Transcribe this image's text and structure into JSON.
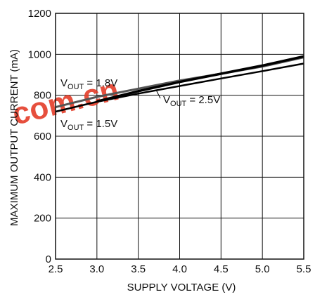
{
  "chart_data": {
    "type": "line",
    "title": "",
    "xlabel": "SUPPLY VOLTAGE (V)",
    "ylabel": "MAXIMUM OUTPUT CURRENT (mA)",
    "xlim": [
      2.5,
      5.5
    ],
    "ylim": [
      0,
      1200
    ],
    "xticks": [
      2.5,
      3.0,
      3.5,
      4.0,
      4.5,
      5.0,
      5.5
    ],
    "xtick_labels": [
      "2.5",
      "3.0",
      "3.5",
      "4.0",
      "4.5",
      "5.0",
      "5.5"
    ],
    "yticks": [
      0,
      200,
      400,
      600,
      800,
      1000,
      1200
    ],
    "ytick_labels": [
      "0",
      "200",
      "400",
      "600",
      "800",
      "1000",
      "1200"
    ],
    "grid": true,
    "legend": "none",
    "series": [
      {
        "name": "VOUT = 1.8V",
        "label_main": "V",
        "label_sub": "OUT",
        "label_rest": " = 1.8V",
        "x": [
          2.5,
          3.0,
          3.5,
          4.0,
          4.5,
          5.0,
          5.5
        ],
        "y": [
          742,
          792,
          832,
          872,
          905,
          940,
          985
        ]
      },
      {
        "name": "VOUT = 2.5V",
        "label_main": "V",
        "label_sub": "OUT",
        "label_rest": " = 2.5V",
        "x": [
          3.0,
          3.5,
          4.0,
          4.5,
          5.0,
          5.5
        ],
        "y": [
          770,
          820,
          865,
          905,
          945,
          990
        ]
      },
      {
        "name": "VOUT = 1.5V",
        "label_main": "V",
        "label_sub": "OUT",
        "label_rest": " = 1.5V",
        "x": [
          2.5,
          3.0,
          3.5,
          4.0,
          4.5,
          5.0,
          5.5
        ],
        "y": [
          720,
          768,
          808,
          845,
          882,
          918,
          955
        ]
      }
    ],
    "colors": {
      "axis": "#111111",
      "grid": "#111111",
      "series_1_8": "#555555",
      "series_2_5": "#000000",
      "series_1_5": "#000000"
    }
  },
  "watermark": {
    "text": "com.cn",
    "color": "#e4412d"
  }
}
